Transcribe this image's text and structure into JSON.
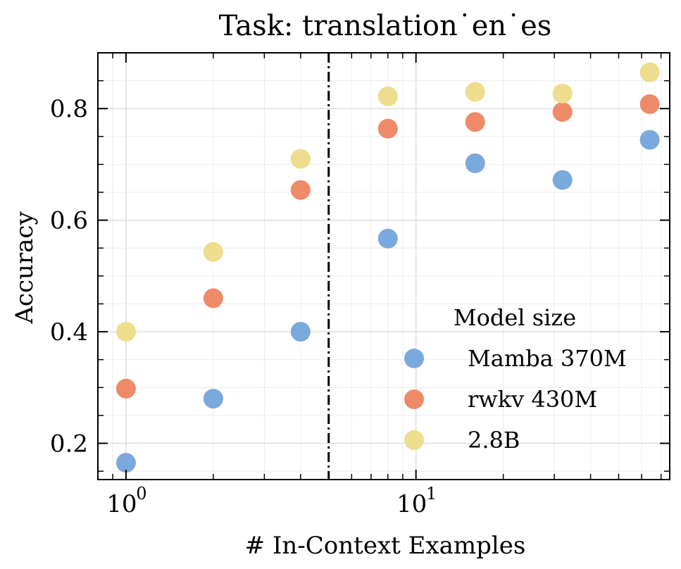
{
  "chart_data": {
    "type": "scatter",
    "title": "Task: translation˙en˙es",
    "xlabel": "# In-Context Examples",
    "ylabel": "Accuracy",
    "xscale": "log",
    "xlim": [
      0.8,
      75
    ],
    "ylim": [
      0.135,
      0.9
    ],
    "x_ticks": [
      {
        "value": 1,
        "label": "10",
        "exp": "0"
      },
      {
        "value": 10,
        "label": "10",
        "exp": "1"
      }
    ],
    "y_ticks": [
      {
        "value": 0.2,
        "label": "0.2"
      },
      {
        "value": 0.4,
        "label": "0.4"
      },
      {
        "value": 0.6,
        "label": "0.6"
      },
      {
        "value": 0.8,
        "label": "0.8"
      }
    ],
    "grid": true,
    "vline": {
      "x": 5,
      "style": "dashdot",
      "color": "#000000"
    },
    "legend": {
      "title": "Model size",
      "position": "lower-right"
    },
    "x": [
      1,
      2,
      4,
      8,
      16,
      32,
      64
    ],
    "series": [
      {
        "name": "Mamba 370M",
        "color": "#7aa9dd",
        "values": [
          0.165,
          0.28,
          0.4,
          0.567,
          0.702,
          0.672,
          0.744
        ]
      },
      {
        "name": "rwkv 430M",
        "color": "#ef8a69",
        "values": [
          0.298,
          0.46,
          0.654,
          0.764,
          0.776,
          0.794,
          0.808
        ]
      },
      {
        "name": "2.8B",
        "color": "#eedd8c",
        "values": [
          0.4,
          0.543,
          0.71,
          0.822,
          0.83,
          0.827,
          0.865
        ]
      }
    ]
  }
}
